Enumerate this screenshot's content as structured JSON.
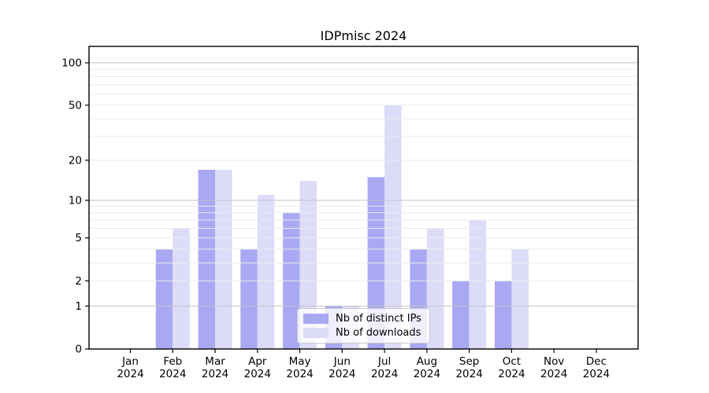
{
  "title": "IDPmisc 2024",
  "legend": {
    "items": [
      {
        "label": "Nb of distinct IPs",
        "color": "#a9a9f3"
      },
      {
        "label": "Nb of downloads",
        "color": "#dcdcf9"
      }
    ]
  },
  "chart_data": {
    "type": "bar",
    "title": "IDPmisc 2024",
    "categories": [
      "Jan",
      "Feb",
      "Mar",
      "Apr",
      "May",
      "Jun",
      "Jul",
      "Aug",
      "Sep",
      "Oct",
      "Nov",
      "Dec"
    ],
    "x_sublabel": "2024",
    "series": [
      {
        "name": "Nb of distinct IPs",
        "color": "#a9a9f3",
        "values": [
          0,
          4,
          17,
          4,
          8,
          1,
          15,
          4,
          2,
          2,
          0,
          0
        ]
      },
      {
        "name": "Nb of downloads",
        "color": "#dcdcf9",
        "values": [
          0,
          6,
          17,
          11,
          14,
          1,
          50,
          6,
          7,
          4,
          0,
          0
        ]
      }
    ],
    "ylabel": "",
    "xlabel": "",
    "yscale": "log10(1+x)",
    "ylim": [
      0,
      127
    ],
    "y_tick_values": [
      100,
      50,
      20,
      10,
      5,
      2,
      1,
      0
    ],
    "y_major_gridlines": [
      1,
      10,
      100
    ],
    "y_minor_gridlines": [
      2,
      3,
      4,
      5,
      6,
      7,
      8,
      9,
      20,
      30,
      40,
      50,
      60,
      70,
      80,
      90
    ],
    "grid": "horizontal",
    "legend_position": "bottom-center-inside",
    "colors": {
      "axis": "#000000",
      "grid_major": "#c3c3c3",
      "grid_minor": "#ebebeb",
      "text": "#000000",
      "background": "#ffffff"
    }
  }
}
